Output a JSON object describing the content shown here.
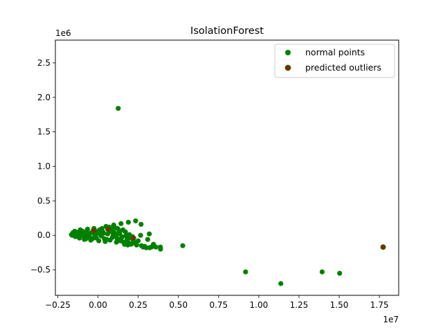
{
  "chart_data": {
    "type": "scatter",
    "title": "IsolationForest",
    "xlabel": "",
    "ylabel": "",
    "x_offset_label": "1e7",
    "y_offset_label": "1e6",
    "xlim": [
      -0.265,
      1.87
    ],
    "ylim": [
      -0.87,
      2.83
    ],
    "xticks": [
      -0.25,
      0.0,
      0.25,
      0.5,
      0.75,
      1.0,
      1.25,
      1.5,
      1.75
    ],
    "xtick_labels": [
      "−0.25",
      "0.00",
      "0.25",
      "0.50",
      "0.75",
      "1.00",
      "1.25",
      "1.50",
      "1.75"
    ],
    "yticks": [
      -0.5,
      0.0,
      0.5,
      1.0,
      1.5,
      2.0,
      2.5
    ],
    "ytick_labels": [
      "−0.5",
      "0.0",
      "0.5",
      "1.0",
      "1.5",
      "2.0",
      "2.5"
    ],
    "grid": false,
    "legend_position": "top-right",
    "series": [
      {
        "name": "normal points",
        "color": "#008000",
        "points": [
          [
            0.126,
            1.84
          ],
          [
            0.527,
            -0.15
          ],
          [
            0.918,
            -0.53
          ],
          [
            1.137,
            -0.7
          ],
          [
            1.394,
            -0.53
          ],
          [
            1.503,
            -0.55
          ],
          [
            0.388,
            -0.17
          ],
          [
            0.389,
            -0.2
          ],
          [
            0.345,
            -0.13
          ],
          [
            0.331,
            -0.17
          ],
          [
            0.319,
            0.02
          ],
          [
            0.309,
            -0.06
          ],
          [
            0.281,
            -0.17
          ],
          [
            0.268,
            0.16
          ],
          [
            0.265,
            0.0
          ],
          [
            0.234,
            0.21
          ],
          [
            0.189,
            0.19
          ],
          [
            0.143,
            0.17
          ],
          [
            0.122,
            0.1
          ],
          [
            0.098,
            0.15
          ],
          [
            0.07,
            0.12
          ],
          [
            0.05,
            0.13
          ],
          [
            -0.165,
            0.01
          ],
          [
            -0.155,
            0.04
          ],
          [
            -0.145,
            0.06
          ],
          [
            -0.13,
            0.02
          ],
          [
            -0.12,
            0.05
          ],
          [
            -0.11,
            0.08
          ],
          [
            -0.1,
            0.0
          ],
          [
            -0.09,
            0.03
          ],
          [
            -0.08,
            -0.02
          ],
          [
            -0.07,
            0.05
          ],
          [
            -0.06,
            0.01
          ],
          [
            -0.05,
            -0.03
          ],
          [
            -0.04,
            0.04
          ],
          [
            -0.03,
            0.07
          ],
          [
            -0.02,
            0.0
          ],
          [
            -0.01,
            -0.04
          ],
          [
            0.0,
            0.03
          ],
          [
            0.01,
            0.08
          ],
          [
            0.02,
            -0.01
          ],
          [
            0.03,
            0.05
          ],
          [
            0.04,
            -0.05
          ],
          [
            0.06,
            0.02
          ],
          [
            0.08,
            0.06
          ],
          [
            0.09,
            -0.03
          ],
          [
            0.1,
            0.04
          ],
          [
            0.11,
            0.0
          ],
          [
            0.12,
            -0.05
          ],
          [
            0.13,
            0.07
          ],
          [
            0.14,
            -0.08
          ],
          [
            0.15,
            -0.02
          ],
          [
            0.16,
            -0.1
          ],
          [
            0.17,
            0.05
          ],
          [
            0.18,
            -0.06
          ],
          [
            0.19,
            -0.11
          ],
          [
            0.2,
            -0.04
          ],
          [
            0.21,
            -0.12
          ],
          [
            0.22,
            -0.09
          ],
          [
            0.24,
            -0.14
          ],
          [
            0.25,
            -0.08
          ],
          [
            0.27,
            -0.15
          ],
          [
            0.29,
            -0.16
          ],
          [
            0.3,
            -0.18
          ],
          [
            0.32,
            -0.18
          ],
          [
            0.34,
            -0.16
          ],
          [
            0.36,
            -0.17
          ],
          [
            -0.14,
            -0.02
          ],
          [
            -0.115,
            -0.04
          ],
          [
            -0.085,
            -0.06
          ],
          [
            -0.065,
            0.09
          ],
          [
            -0.045,
            -0.07
          ],
          [
            -0.025,
            0.1
          ],
          [
            0.005,
            -0.08
          ],
          [
            0.025,
            0.1
          ],
          [
            0.045,
            -0.09
          ],
          [
            0.065,
            0.1
          ],
          [
            0.075,
            -0.07
          ],
          [
            0.085,
            0.09
          ],
          [
            0.105,
            0.11
          ],
          [
            0.115,
            -0.1
          ],
          [
            0.135,
            0.03
          ],
          [
            0.155,
            0.08
          ],
          [
            0.165,
            -0.13
          ],
          [
            0.175,
            -0.01
          ],
          [
            0.185,
            -0.14
          ],
          [
            0.195,
            0.01
          ],
          [
            0.205,
            -0.13
          ],
          [
            0.215,
            -0.02
          ],
          [
            0.23,
            -0.11
          ],
          [
            -0.15,
            0.02
          ],
          [
            -0.125,
            -0.01
          ],
          [
            -0.095,
            0.06
          ],
          [
            -0.075,
            -0.05
          ],
          [
            -0.055,
            0.02
          ],
          [
            -0.035,
            -0.05
          ],
          [
            -0.015,
            0.06
          ],
          [
            0.015,
            0.01
          ],
          [
            0.035,
            0.03
          ],
          [
            0.055,
            -0.06
          ],
          [
            0.095,
            0.01
          ],
          [
            0.125,
            0.02
          ],
          [
            0.145,
            -0.04
          ],
          [
            -0.16,
            0.0
          ]
        ]
      },
      {
        "name": "predicted outliers",
        "color": "#8B2500",
        "points": [
          [
            1.773,
            -0.17
          ],
          [
            0.22,
            -0.04
          ],
          [
            -0.025,
            0.07
          ],
          [
            0.062,
            0.09
          ]
        ]
      }
    ]
  }
}
